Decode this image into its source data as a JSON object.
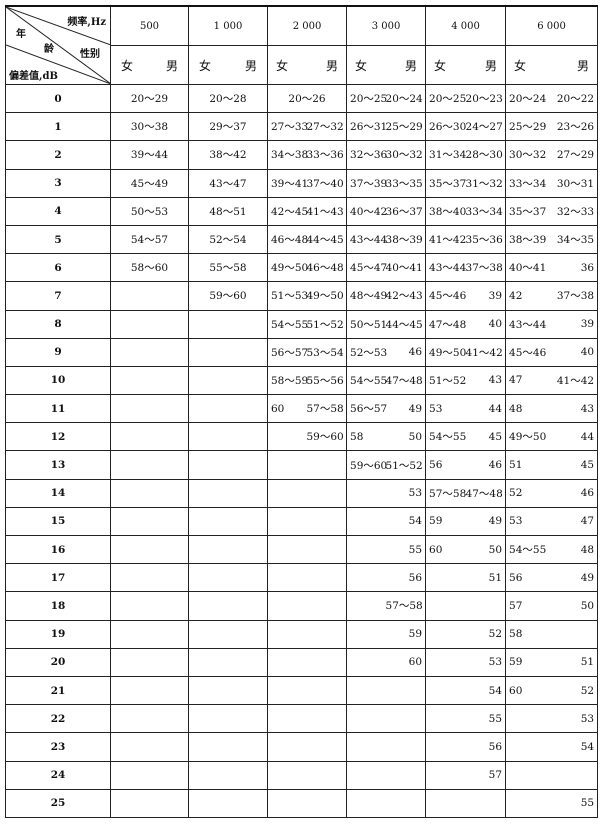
{
  "header": {
    "corner": {
      "frequency": "频率,Hz",
      "age_1": "年",
      "age_2": "龄",
      "sex": "性别",
      "deviation": "偏差值,dB"
    },
    "frequencies": [
      "500",
      "1 000",
      "2 000",
      "3 000",
      "4 000",
      "6 000"
    ],
    "female": "女",
    "male": "男"
  },
  "rows": [
    {
      "dev": "0",
      "v": [
        "20～29",
        "20～28",
        "20～26",
        "",
        "20～25",
        "20～24",
        "20～25",
        "20～23",
        "20～24",
        "20～22"
      ],
      "merged2000": true
    },
    {
      "dev": "1",
      "v": [
        "30～38",
        "29～37",
        "27～33",
        "27～32",
        "26～31",
        "25～29",
        "26～30",
        "24～27",
        "25～29",
        "23～26"
      ]
    },
    {
      "dev": "2",
      "v": [
        "39～44",
        "38～42",
        "34～38",
        "33～36",
        "32～36",
        "30～32",
        "31～34",
        "28～30",
        "30～32",
        "27～29"
      ]
    },
    {
      "dev": "3",
      "v": [
        "45～49",
        "43～47",
        "39～41",
        "37～40",
        "37～39",
        "33～35",
        "35～37",
        "31～32",
        "33～34",
        "30～31"
      ]
    },
    {
      "dev": "4",
      "v": [
        "50～53",
        "48～51",
        "42～45",
        "41～43",
        "40～42",
        "36～37",
        "38～40",
        "33～34",
        "35～37",
        "32～33"
      ]
    },
    {
      "dev": "5",
      "v": [
        "54～57",
        "52～54",
        "46～48",
        "44～45",
        "43～44",
        "38～39",
        "41～42",
        "35～36",
        "38～39",
        "34～35"
      ]
    },
    {
      "dev": "6",
      "v": [
        "58～60",
        "55～58",
        "49～50",
        "46～48",
        "45～47",
        "40～41",
        "43～44",
        "37～38",
        "40～41",
        "36"
      ]
    },
    {
      "dev": "7",
      "v": [
        "",
        "59～60",
        "51～53",
        "49～50",
        "48～49",
        "42～43",
        "45～46",
        "39",
        "42",
        "37～38"
      ]
    },
    {
      "dev": "8",
      "v": [
        "",
        "",
        "54～55",
        "51～52",
        "50～51",
        "44～45",
        "47～48",
        "40",
        "43～44",
        "39"
      ]
    },
    {
      "dev": "9",
      "v": [
        "",
        "",
        "56～57",
        "53～54",
        "52～53",
        "46",
        "49～50",
        "41～42",
        "45～46",
        "40"
      ]
    },
    {
      "dev": "10",
      "v": [
        "",
        "",
        "58～59",
        "55～56",
        "54～55",
        "47～48",
        "51～52",
        "43",
        "47",
        "41～42"
      ]
    },
    {
      "dev": "11",
      "v": [
        "",
        "",
        "60",
        "57～58",
        "56～57",
        "49",
        "53",
        "44",
        "48",
        "43"
      ]
    },
    {
      "dev": "12",
      "v": [
        "",
        "",
        "",
        "59～60",
        "58",
        "50",
        "54～55",
        "45",
        "49～50",
        "44"
      ]
    },
    {
      "dev": "13",
      "v": [
        "",
        "",
        "",
        "",
        "59～60",
        "51～52",
        "56",
        "46",
        "51",
        "45"
      ]
    },
    {
      "dev": "14",
      "v": [
        "",
        "",
        "",
        "",
        "",
        "53",
        "57～58",
        "47～48",
        "52",
        "46"
      ]
    },
    {
      "dev": "15",
      "v": [
        "",
        "",
        "",
        "",
        "",
        "54",
        "59",
        "49",
        "53",
        "47"
      ]
    },
    {
      "dev": "16",
      "v": [
        "",
        "",
        "",
        "",
        "",
        "55",
        "60",
        "50",
        "54～55",
        "48"
      ]
    },
    {
      "dev": "17",
      "v": [
        "",
        "",
        "",
        "",
        "",
        "56",
        "",
        "51",
        "56",
        "49"
      ]
    },
    {
      "dev": "18",
      "v": [
        "",
        "",
        "",
        "",
        "",
        "57～58",
        "",
        "",
        "57",
        "50"
      ]
    },
    {
      "dev": "19",
      "v": [
        "",
        "",
        "",
        "",
        "",
        "59",
        "",
        "52",
        "58",
        ""
      ]
    },
    {
      "dev": "20",
      "v": [
        "",
        "",
        "",
        "",
        "",
        "60",
        "",
        "53",
        "59",
        "51"
      ]
    },
    {
      "dev": "21",
      "v": [
        "",
        "",
        "",
        "",
        "",
        "",
        "",
        "54",
        "60",
        "52"
      ]
    },
    {
      "dev": "22",
      "v": [
        "",
        "",
        "",
        "",
        "",
        "",
        "",
        "55",
        "",
        "53"
      ]
    },
    {
      "dev": "23",
      "v": [
        "",
        "",
        "",
        "",
        "",
        "",
        "",
        "56",
        "",
        "54"
      ]
    },
    {
      "dev": "24",
      "v": [
        "",
        "",
        "",
        "",
        "",
        "",
        "",
        "57",
        "",
        ""
      ]
    },
    {
      "dev": "25",
      "v": [
        "",
        "",
        "",
        "",
        "",
        "",
        "",
        "",
        "",
        "55"
      ]
    }
  ]
}
